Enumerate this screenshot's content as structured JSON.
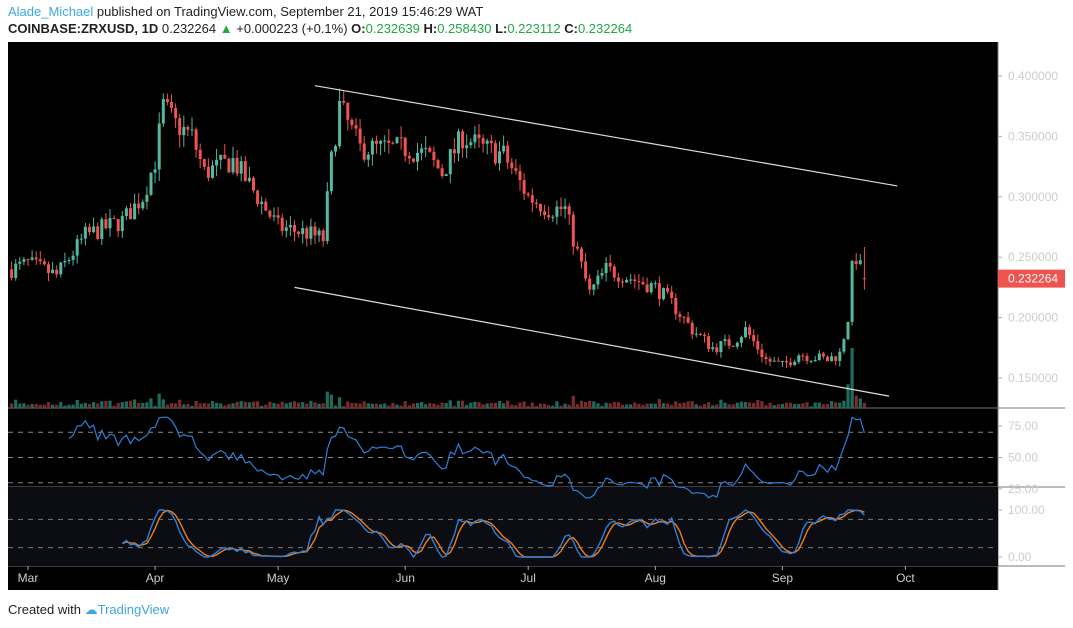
{
  "header": {
    "author": "Alade_Michael",
    "published": "published on TradingView.com, September 21, 2019 15:46:29 WAT",
    "symbol": "COINBASE:ZRXUSD, 1D",
    "last": "0.232264",
    "change": "+0.000223 (+0.1%)",
    "o_label": "O:",
    "o": "0.232639",
    "h_label": "H:",
    "h": "0.258430",
    "l_label": "L:",
    "l": "0.223112",
    "c_label": "C:",
    "c": "0.232264"
  },
  "footer": {
    "created": "Created with",
    "brand": "TradingView"
  },
  "colors": {
    "up": "#53b89f",
    "down": "#ef5350",
    "vol_up": "#1e6b5e",
    "vol_down": "#7a2b2c",
    "rsi": "#2f7fd8",
    "stoch_k": "#2f7fd8",
    "stoch_d": "#ef7d1a",
    "last_price_bg": "#ef5350"
  },
  "chart_data": {
    "type": "candlestick",
    "symbol": "COINBASE:ZRXUSD",
    "interval": "1D",
    "x_ticks": [
      "Mar",
      "Apr",
      "May",
      "Jun",
      "Jul",
      "Aug",
      "Sep",
      "Oct"
    ],
    "price_ticks": [
      "0.400000",
      "0.350000",
      "0.300000",
      "0.250000",
      "0.200000",
      "0.150000"
    ],
    "price_ylim": [
      0.125,
      0.425
    ],
    "last_price": "0.232264",
    "approx_close_path": [
      [
        "2019-02-25",
        0.24
      ],
      [
        "2019-03-01",
        0.245
      ],
      [
        "2019-03-08",
        0.235
      ],
      [
        "2019-03-15",
        0.268
      ],
      [
        "2019-03-24",
        0.28
      ],
      [
        "2019-03-29",
        0.3
      ],
      [
        "2019-04-01",
        0.33
      ],
      [
        "2019-04-03",
        0.375
      ],
      [
        "2019-04-06",
        0.36
      ],
      [
        "2019-04-10",
        0.35
      ],
      [
        "2019-04-13",
        0.32
      ],
      [
        "2019-04-20",
        0.33
      ],
      [
        "2019-04-25",
        0.305
      ],
      [
        "2019-05-01",
        0.275
      ],
      [
        "2019-05-08",
        0.27
      ],
      [
        "2019-05-12",
        0.265
      ],
      [
        "2019-05-14",
        0.33
      ],
      [
        "2019-05-16",
        0.375
      ],
      [
        "2019-05-21",
        0.34
      ],
      [
        "2019-06-01",
        0.34
      ],
      [
        "2019-06-06",
        0.335
      ],
      [
        "2019-06-10",
        0.32
      ],
      [
        "2019-06-15",
        0.35
      ],
      [
        "2019-06-20",
        0.34
      ],
      [
        "2019-06-25",
        0.335
      ],
      [
        "2019-07-01",
        0.3
      ],
      [
        "2019-07-06",
        0.29
      ],
      [
        "2019-07-10",
        0.29
      ],
      [
        "2019-07-12",
        0.265
      ],
      [
        "2019-07-16",
        0.22
      ],
      [
        "2019-07-20",
        0.24
      ],
      [
        "2019-08-01",
        0.225
      ],
      [
        "2019-08-05",
        0.212
      ],
      [
        "2019-08-10",
        0.19
      ],
      [
        "2019-08-15",
        0.175
      ],
      [
        "2019-08-20",
        0.18
      ],
      [
        "2019-08-23",
        0.19
      ],
      [
        "2019-08-28",
        0.165
      ],
      [
        "2019-09-01",
        0.16
      ],
      [
        "2019-09-05",
        0.17
      ],
      [
        "2019-09-12",
        0.165
      ],
      [
        "2019-09-15",
        0.17
      ],
      [
        "2019-09-17",
        0.2
      ],
      [
        "2019-09-18",
        0.24
      ],
      [
        "2019-09-19",
        0.25
      ],
      [
        "2019-09-21",
        0.232264
      ]
    ],
    "trendlines": [
      {
        "from": [
          "2019-05-10",
          0.392
        ],
        "to": [
          "2019-09-29",
          0.309
        ]
      },
      {
        "from": [
          "2019-05-05",
          0.225
        ],
        "to": [
          "2019-09-27",
          0.135
        ]
      }
    ],
    "rsi": {
      "ticks": [
        "75.00",
        "50.00",
        "25.00"
      ],
      "levels": [
        70,
        50,
        30
      ],
      "ylim": [
        15,
        85
      ]
    },
    "stoch": {
      "ticks": [
        "100.00",
        "0.00"
      ],
      "levels": [
        80,
        20
      ],
      "ylim": [
        0,
        100
      ]
    }
  }
}
